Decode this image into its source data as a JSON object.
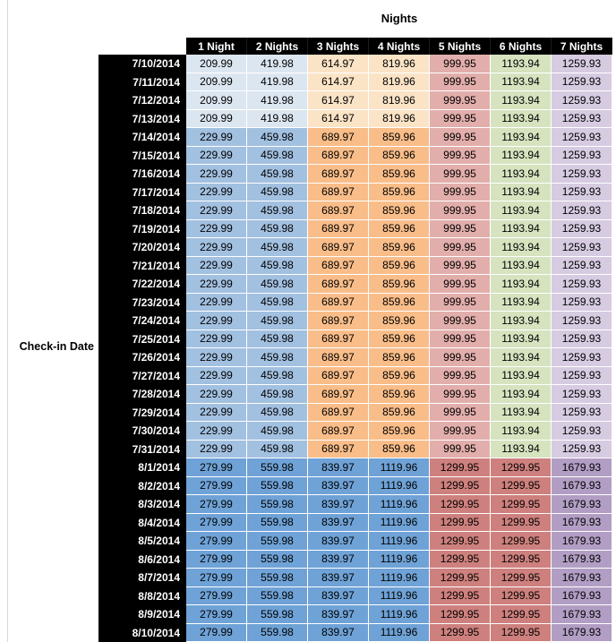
{
  "chart_data": {
    "type": "table",
    "title": "Nights",
    "row_axis_label": "Check-in Date",
    "columns": [
      "1 Night",
      "2 Nights",
      "3 Nights",
      "4 Nights",
      "5 Nights",
      "6 Nights",
      "7 Nights"
    ],
    "colors": {
      "header_bg": "#000000",
      "header_text": "#ffffff",
      "bands": {
        "a": [
          "#DCE6F1",
          "#DCE6F1",
          "#FBE3C6",
          "#FBE3C6",
          "#E2AEAB",
          "#D5E3BF",
          "#D6CBE1"
        ],
        "b": [
          "#A2C0E0",
          "#A2C0E0",
          "#F9BD89",
          "#F9BD89",
          "#E2AEAB",
          "#D5E3BF",
          "#D6CBE1"
        ],
        "c": [
          "#6FA2D6",
          "#6FA2D6",
          "#6FA2D6",
          "#6FA2D6",
          "#CD807D",
          "#CD807D",
          "#B29EC4"
        ]
      }
    },
    "rows": [
      {
        "date": "7/10/2014",
        "band": "a",
        "values": [
          "209.99",
          "419.98",
          "614.97",
          "819.96",
          "999.95",
          "1193.94",
          "1259.93"
        ]
      },
      {
        "date": "7/11/2014",
        "band": "a",
        "values": [
          "209.99",
          "419.98",
          "614.97",
          "819.96",
          "999.95",
          "1193.94",
          "1259.93"
        ]
      },
      {
        "date": "7/12/2014",
        "band": "a",
        "values": [
          "209.99",
          "419.98",
          "614.97",
          "819.96",
          "999.95",
          "1193.94",
          "1259.93"
        ]
      },
      {
        "date": "7/13/2014",
        "band": "a",
        "values": [
          "209.99",
          "419.98",
          "614.97",
          "819.96",
          "999.95",
          "1193.94",
          "1259.93"
        ]
      },
      {
        "date": "7/14/2014",
        "band": "b",
        "values": [
          "229.99",
          "459.98",
          "689.97",
          "859.96",
          "999.95",
          "1193.94",
          "1259.93"
        ]
      },
      {
        "date": "7/15/2014",
        "band": "b",
        "values": [
          "229.99",
          "459.98",
          "689.97",
          "859.96",
          "999.95",
          "1193.94",
          "1259.93"
        ]
      },
      {
        "date": "7/16/2014",
        "band": "b",
        "values": [
          "229.99",
          "459.98",
          "689.97",
          "859.96",
          "999.95",
          "1193.94",
          "1259.93"
        ]
      },
      {
        "date": "7/17/2014",
        "band": "b",
        "values": [
          "229.99",
          "459.98",
          "689.97",
          "859.96",
          "999.95",
          "1193.94",
          "1259.93"
        ]
      },
      {
        "date": "7/18/2014",
        "band": "b",
        "values": [
          "229.99",
          "459.98",
          "689.97",
          "859.96",
          "999.95",
          "1193.94",
          "1259.93"
        ]
      },
      {
        "date": "7/19/2014",
        "band": "b",
        "values": [
          "229.99",
          "459.98",
          "689.97",
          "859.96",
          "999.95",
          "1193.94",
          "1259.93"
        ]
      },
      {
        "date": "7/20/2014",
        "band": "b",
        "values": [
          "229.99",
          "459.98",
          "689.97",
          "859.96",
          "999.95",
          "1193.94",
          "1259.93"
        ]
      },
      {
        "date": "7/21/2014",
        "band": "b",
        "values": [
          "229.99",
          "459.98",
          "689.97",
          "859.96",
          "999.95",
          "1193.94",
          "1259.93"
        ]
      },
      {
        "date": "7/22/2014",
        "band": "b",
        "values": [
          "229.99",
          "459.98",
          "689.97",
          "859.96",
          "999.95",
          "1193.94",
          "1259.93"
        ]
      },
      {
        "date": "7/23/2014",
        "band": "b",
        "values": [
          "229.99",
          "459.98",
          "689.97",
          "859.96",
          "999.95",
          "1193.94",
          "1259.93"
        ]
      },
      {
        "date": "7/24/2014",
        "band": "b",
        "values": [
          "229.99",
          "459.98",
          "689.97",
          "859.96",
          "999.95",
          "1193.94",
          "1259.93"
        ]
      },
      {
        "date": "7/25/2014",
        "band": "b",
        "values": [
          "229.99",
          "459.98",
          "689.97",
          "859.96",
          "999.95",
          "1193.94",
          "1259.93"
        ]
      },
      {
        "date": "7/26/2014",
        "band": "b",
        "values": [
          "229.99",
          "459.98",
          "689.97",
          "859.96",
          "999.95",
          "1193.94",
          "1259.93"
        ]
      },
      {
        "date": "7/27/2014",
        "band": "b",
        "values": [
          "229.99",
          "459.98",
          "689.97",
          "859.96",
          "999.95",
          "1193.94",
          "1259.93"
        ]
      },
      {
        "date": "7/28/2014",
        "band": "b",
        "values": [
          "229.99",
          "459.98",
          "689.97",
          "859.96",
          "999.95",
          "1193.94",
          "1259.93"
        ]
      },
      {
        "date": "7/29/2014",
        "band": "b",
        "values": [
          "229.99",
          "459.98",
          "689.97",
          "859.96",
          "999.95",
          "1193.94",
          "1259.93"
        ]
      },
      {
        "date": "7/30/2014",
        "band": "b",
        "values": [
          "229.99",
          "459.98",
          "689.97",
          "859.96",
          "999.95",
          "1193.94",
          "1259.93"
        ]
      },
      {
        "date": "7/31/2014",
        "band": "b",
        "values": [
          "229.99",
          "459.98",
          "689.97",
          "859.96",
          "999.95",
          "1193.94",
          "1259.93"
        ]
      },
      {
        "date": "8/1/2014",
        "band": "c",
        "values": [
          "279.99",
          "559.98",
          "839.97",
          "1119.96",
          "1299.95",
          "1299.95",
          "1679.93"
        ]
      },
      {
        "date": "8/2/2014",
        "band": "c",
        "values": [
          "279.99",
          "559.98",
          "839.97",
          "1119.96",
          "1299.95",
          "1299.95",
          "1679.93"
        ]
      },
      {
        "date": "8/3/2014",
        "band": "c",
        "values": [
          "279.99",
          "559.98",
          "839.97",
          "1119.96",
          "1299.95",
          "1299.95",
          "1679.93"
        ]
      },
      {
        "date": "8/4/2014",
        "band": "c",
        "values": [
          "279.99",
          "559.98",
          "839.97",
          "1119.96",
          "1299.95",
          "1299.95",
          "1679.93"
        ]
      },
      {
        "date": "8/5/2014",
        "band": "c",
        "values": [
          "279.99",
          "559.98",
          "839.97",
          "1119.96",
          "1299.95",
          "1299.95",
          "1679.93"
        ]
      },
      {
        "date": "8/6/2014",
        "band": "c",
        "values": [
          "279.99",
          "559.98",
          "839.97",
          "1119.96",
          "1299.95",
          "1299.95",
          "1679.93"
        ]
      },
      {
        "date": "8/7/2014",
        "band": "c",
        "values": [
          "279.99",
          "559.98",
          "839.97",
          "1119.96",
          "1299.95",
          "1299.95",
          "1679.93"
        ]
      },
      {
        "date": "8/8/2014",
        "band": "c",
        "values": [
          "279.99",
          "559.98",
          "839.97",
          "1119.96",
          "1299.95",
          "1299.95",
          "1679.93"
        ]
      },
      {
        "date": "8/9/2014",
        "band": "c",
        "values": [
          "279.99",
          "559.98",
          "839.97",
          "1119.96",
          "1299.95",
          "1299.95",
          "1679.93"
        ]
      },
      {
        "date": "8/10/2014",
        "band": "c",
        "values": [
          "279.99",
          "559.98",
          "839.97",
          "1119.96",
          "1299.95",
          "1299.95",
          "1679.93"
        ]
      }
    ]
  }
}
